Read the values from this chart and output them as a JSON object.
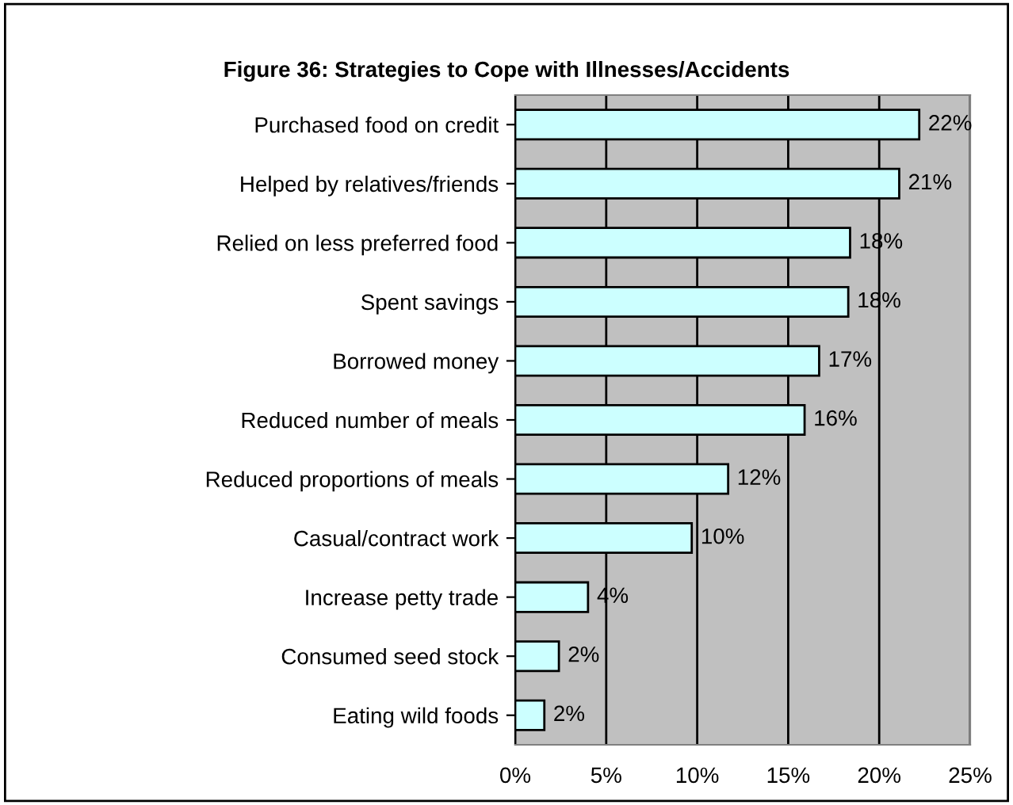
{
  "chart_data": {
    "type": "bar",
    "orientation": "horizontal",
    "title": "Figure 36: Strategies to Cope with Illnesses/Accidents",
    "categories": [
      "Purchased food on credit",
      "Helped by relatives/friends",
      "Relied on less preferred food",
      "Spent savings",
      "Borrowed money",
      "Reduced number of meals",
      "Reduced proportions of meals",
      "Casual/contract work",
      "Increase petty trade",
      "Consumed seed stock",
      "Eating wild foods"
    ],
    "values": [
      22.2,
      21.1,
      18.4,
      18.3,
      16.7,
      15.9,
      11.7,
      9.7,
      4.0,
      2.4,
      1.6
    ],
    "value_labels": [
      "22%",
      "21%",
      "18%",
      "18%",
      "17%",
      "16%",
      "12%",
      "10%",
      "4%",
      "2%",
      "2%"
    ],
    "color": "#ccffff",
    "xlim": [
      0,
      25
    ],
    "xticks": [
      {
        "value": 0,
        "label": "0%"
      },
      {
        "value": 5,
        "label": "5%"
      },
      {
        "value": 10,
        "label": "10%"
      },
      {
        "value": 15,
        "label": "15%"
      },
      {
        "value": 20,
        "label": "20%"
      },
      {
        "value": 25,
        "label": "25%"
      }
    ],
    "grid": "x",
    "legend": false
  }
}
